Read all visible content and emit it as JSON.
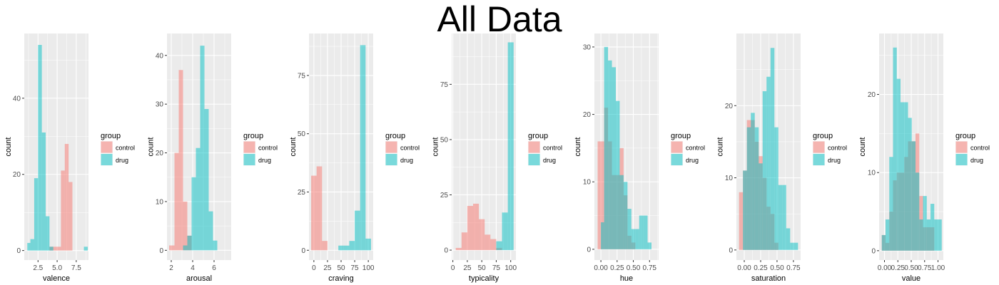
{
  "title": "All Data",
  "colors": {
    "control": "#F8766D",
    "drug": "#00BFC4",
    "panel_bg": "#EBEBEB",
    "grid": "#FFFFFF"
  },
  "chart_data": [
    {
      "type": "histogram",
      "xlabel": "valence",
      "ylabel": "count",
      "xlim": [
        0.7,
        9.1
      ],
      "ylim": [
        -2.5,
        57
      ],
      "xticks": [
        2.5,
        5.0,
        7.5
      ],
      "xtick_labels": [
        "2.5",
        "5.0",
        "7.5"
      ],
      "yticks": [
        0,
        20,
        40
      ],
      "ytick_labels": [
        "0",
        "20",
        "40"
      ],
      "bin_edges": [
        1.1,
        1.5,
        2.0,
        2.5,
        3.0,
        3.5,
        4.0,
        4.5,
        5.0,
        5.5,
        6.0,
        6.5,
        7.0,
        7.5,
        8.0,
        8.5,
        9.0
      ],
      "series": [
        {
          "name": "control",
          "values": [
            0,
            0,
            0,
            0,
            0,
            0,
            1,
            1,
            1,
            21,
            28,
            18,
            0,
            0,
            0,
            0
          ]
        },
        {
          "name": "drug",
          "values": [
            2,
            3,
            19,
            54,
            31,
            9,
            1,
            0,
            0,
            0,
            0,
            0,
            0,
            0,
            0,
            1
          ]
        }
      ],
      "legend_title": "group",
      "legend_labels": [
        "control",
        "drug"
      ]
    },
    {
      "type": "histogram",
      "xlabel": "arousal",
      "ylabel": "count",
      "xlim": [
        1.6,
        7.6
      ],
      "ylim": [
        -2,
        44.5
      ],
      "xticks": [
        2,
        4,
        6
      ],
      "xtick_labels": [
        "2",
        "4",
        "6"
      ],
      "yticks": [
        0,
        10,
        20,
        30,
        40
      ],
      "ytick_labels": [
        "0",
        "10",
        "20",
        "30",
        "40"
      ],
      "bin_edges": [
        1.8,
        2.3,
        2.7,
        3.1,
        3.5,
        3.9,
        4.3,
        4.7,
        5.1,
        5.5,
        5.9,
        6.3,
        6.7,
        7.1
      ],
      "series": [
        {
          "name": "control",
          "values": [
            1,
            20,
            37,
            10,
            3,
            0,
            0,
            0,
            0,
            0,
            0,
            0,
            0
          ]
        },
        {
          "name": "drug",
          "values": [
            0,
            0,
            0,
            1,
            3,
            15,
            21,
            42,
            29,
            8,
            2,
            0,
            0
          ]
        }
      ],
      "legend_title": "group",
      "legend_labels": [
        "control",
        "drug"
      ]
    },
    {
      "type": "histogram",
      "xlabel": "craving",
      "ylabel": "count",
      "xlim": [
        -9,
        109
      ],
      "ylim": [
        -4.2,
        93
      ],
      "xticks": [
        0,
        25,
        50,
        75,
        100
      ],
      "xtick_labels": [
        "0",
        "25",
        "50",
        "75",
        "100"
      ],
      "yticks": [
        0,
        25,
        50,
        75
      ],
      "ytick_labels": [
        "0",
        "25",
        "50",
        "75"
      ],
      "bin_edges": [
        -5,
        5,
        15,
        25,
        35,
        45,
        55,
        65,
        75,
        85,
        95,
        105
      ],
      "series": [
        {
          "name": "control",
          "values": [
            32,
            36,
            4,
            0,
            0,
            0,
            0,
            0,
            0,
            0,
            0
          ]
        },
        {
          "name": "drug",
          "values": [
            0,
            0,
            0,
            0,
            0,
            2,
            2,
            4,
            17,
            88,
            5
          ]
        }
      ],
      "legend_title": "group",
      "legend_labels": [
        "control",
        "drug"
      ]
    },
    {
      "type": "histogram",
      "xlabel": "typicality",
      "ylabel": "count",
      "xlim": [
        -2,
        109
      ],
      "ylim": [
        -4.5,
        98
      ],
      "xticks": [
        0,
        25,
        50,
        75,
        100
      ],
      "xtick_labels": [
        "0",
        "25",
        "50",
        "75",
        "100"
      ],
      "yticks": [
        0,
        25,
        50,
        75
      ],
      "ytick_labels": [
        "0",
        "25",
        "50",
        "75"
      ],
      "bin_edges": [
        5,
        15,
        25,
        35,
        45,
        55,
        65,
        75,
        85,
        95,
        105
      ],
      "series": [
        {
          "name": "control",
          "values": [
            1,
            8,
            20,
            21,
            14,
            7,
            5,
            1,
            0,
            0
          ]
        },
        {
          "name": "drug",
          "values": [
            0,
            0,
            0,
            0,
            0,
            0,
            0,
            4,
            17,
            94
          ]
        }
      ],
      "legend_title": "group",
      "legend_labels": [
        "control",
        "drug"
      ]
    },
    {
      "type": "histogram",
      "xlabel": "hue",
      "ylabel": "count",
      "xlim": [
        -0.1,
        0.89
      ],
      "ylim": [
        -1.6,
        32
      ],
      "xticks": [
        0.0,
        0.25,
        0.5,
        0.75
      ],
      "xtick_labels": [
        "0.00",
        "0.25",
        "0.50",
        "0.75"
      ],
      "yticks": [
        0,
        10,
        20,
        30
      ],
      "ytick_labels": [
        "0",
        "10",
        "20",
        "30"
      ],
      "bin_edges": [
        -0.05,
        0.0,
        0.05,
        0.11,
        0.17,
        0.23,
        0.29,
        0.35,
        0.41,
        0.47,
        0.53,
        0.59,
        0.65,
        0.72,
        0.78,
        0.84
      ],
      "series": [
        {
          "name": "control",
          "values": [
            16,
            16,
            21,
            16,
            11,
            11,
            15,
            8,
            2,
            1,
            0,
            0,
            0,
            0,
            0
          ]
        },
        {
          "name": "drug",
          "values": [
            0,
            4,
            30,
            28,
            27,
            22,
            11,
            10,
            6,
            3,
            3,
            5,
            5,
            1,
            0
          ]
        }
      ],
      "legend_title": "group",
      "legend_labels": [
        "control",
        "drug"
      ]
    },
    {
      "type": "histogram",
      "xlabel": "saturation",
      "ylabel": "count",
      "xlim": [
        -0.12,
        0.86
      ],
      "ylim": [
        -1.4,
        30
      ],
      "xticks": [
        0.0,
        0.25,
        0.5,
        0.75
      ],
      "xtick_labels": [
        "0.00",
        "0.25",
        "0.50",
        "0.75"
      ],
      "yticks": [
        0,
        10,
        20
      ],
      "ytick_labels": [
        "0",
        "10",
        "20"
      ],
      "bin_edges": [
        -0.08,
        -0.02,
        0.04,
        0.1,
        0.16,
        0.22,
        0.28,
        0.34,
        0.4,
        0.46,
        0.52,
        0.58,
        0.64,
        0.7,
        0.76,
        0.82
      ],
      "series": [
        {
          "name": "control",
          "values": [
            8,
            11,
            18,
            18,
            15,
            13,
            10,
            6,
            5,
            1,
            0,
            0,
            0,
            0,
            0
          ]
        },
        {
          "name": "drug",
          "values": [
            0,
            11,
            17,
            19,
            17,
            12,
            22,
            24,
            28,
            17,
            9,
            9,
            3,
            1,
            1
          ]
        }
      ],
      "legend_title": "group",
      "legend_labels": [
        "control",
        "drug"
      ]
    },
    {
      "type": "histogram",
      "xlabel": "value",
      "ylabel": "count",
      "xlim": [
        -0.1,
        1.1
      ],
      "ylim": [
        -1.2,
        27.8
      ],
      "xticks": [
        0.0,
        0.25,
        0.5,
        0.75,
        1.0
      ],
      "xtick_labels": [
        "0.00",
        "0.25",
        "0.50",
        "0.75",
        "1.00"
      ],
      "yticks": [
        0,
        10,
        20
      ],
      "ytick_labels": [
        "0",
        "10",
        "20"
      ],
      "bin_edges": [
        -0.05,
        0.02,
        0.09,
        0.16,
        0.23,
        0.3,
        0.37,
        0.44,
        0.51,
        0.58,
        0.65,
        0.72,
        0.79,
        0.86,
        0.93,
        1.0,
        1.07
      ],
      "series": [
        {
          "name": "control",
          "values": [
            2,
            1,
            5,
            9,
            10,
            10,
            12,
            14,
            14,
            15,
            7,
            3,
            3,
            3,
            0,
            0
          ]
        },
        {
          "name": "drug",
          "values": [
            2,
            4,
            12,
            26,
            22,
            19,
            19,
            17,
            14,
            10,
            4,
            7,
            4,
            6,
            4,
            4
          ]
        }
      ],
      "legend_title": "group",
      "legend_labels": [
        "control",
        "drug"
      ]
    }
  ]
}
